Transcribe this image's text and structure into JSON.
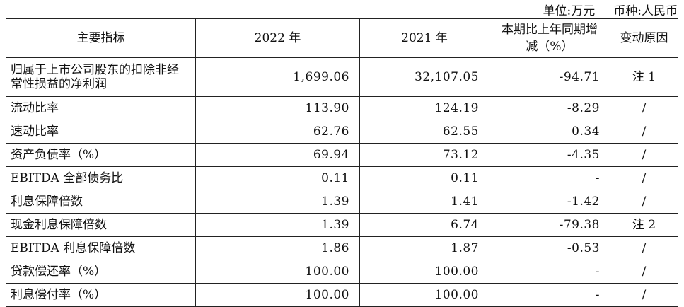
{
  "unit": {
    "unit_label": "单位:万元",
    "currency_label": "币种:人民币"
  },
  "headers": [
    "主要指标",
    "2022 年",
    "2021 年",
    "本期比上年同期增减（%）",
    "变动原因"
  ],
  "rows": [
    {
      "indicator": "归属于上市公司股东的扣除非经常性损益的净利润",
      "y2022": "1,699.06",
      "y2021": "32,107.05",
      "change": "-94.71",
      "reason": "注 1"
    },
    {
      "indicator": "流动比率",
      "y2022": "113.90",
      "y2021": "124.19",
      "change": "-8.29",
      "reason": "/"
    },
    {
      "indicator": "速动比率",
      "y2022": "62.76",
      "y2021": "62.55",
      "change": "0.34",
      "reason": "/"
    },
    {
      "indicator": "资产负债率（%）",
      "y2022": "69.94",
      "y2021": "73.12",
      "change": "-4.35",
      "reason": "/"
    },
    {
      "indicator": "EBITDA 全部债务比",
      "y2022": "0.11",
      "y2021": "0.11",
      "change": "-",
      "reason": "/"
    },
    {
      "indicator": "利息保障倍数",
      "y2022": "1.39",
      "y2021": "1.41",
      "change": "-1.42",
      "reason": "/"
    },
    {
      "indicator": "现金利息保障倍数",
      "y2022": "1.39",
      "y2021": "6.74",
      "change": "-79.38",
      "reason": "注 2"
    },
    {
      "indicator": "EBITDA 利息保障倍数",
      "y2022": "1.86",
      "y2021": "1.87",
      "change": "-0.53",
      "reason": "/"
    },
    {
      "indicator": "贷款偿还率（%）",
      "y2022": "100.00",
      "y2021": "100.00",
      "change": "-",
      "reason": "/"
    },
    {
      "indicator": "利息偿付率（%）",
      "y2022": "100.00",
      "y2021": "100.00",
      "change": "-",
      "reason": "/"
    }
  ]
}
